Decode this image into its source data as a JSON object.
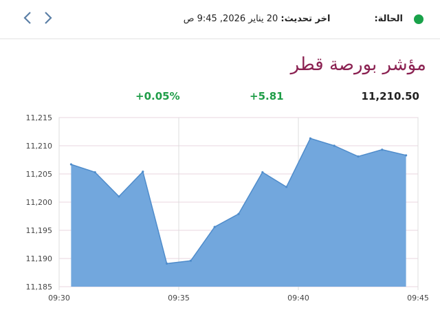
{
  "header": {
    "status_label": "الحالة:",
    "status_color": "#19a24a",
    "update_label": "اخر تحديث:",
    "update_value": "20 يناير 2026, 9:45 ص"
  },
  "nav": {
    "prev_icon": "chevron-left-icon",
    "next_icon": "chevron-right-icon"
  },
  "title": "مؤشر بورصة قطر",
  "stats": {
    "price": "11,210.50",
    "change": "+5.81",
    "change_percent": "+0.05%"
  },
  "chart_data": {
    "type": "area",
    "title": "",
    "xlabel": "",
    "ylabel": "",
    "x_ticks": [
      "09:30",
      "09:35",
      "09:40",
      "09:45"
    ],
    "y_ticks": [
      "11,215",
      "11,210",
      "11,205",
      "11,200",
      "11,195",
      "11,190",
      "11,185"
    ],
    "ylim": [
      11185,
      11215
    ],
    "xlim": [
      "09:30",
      "09:45"
    ],
    "grid": true,
    "fill_color": "#72a7dd",
    "line_color": "#4f8ccb",
    "series": [
      {
        "x": [
          "09:30:30",
          "09:31:30",
          "09:32:30",
          "09:33:30",
          "09:34:30",
          "09:35:30",
          "09:36:30",
          "09:37:30",
          "09:38:30",
          "09:39:30",
          "09:40:30",
          "09:41:30",
          "09:42:30",
          "09:43:30",
          "09:44:30"
        ],
        "values": [
          11206.7,
          11205.3,
          11201.0,
          11205.4,
          11189.1,
          11189.6,
          11195.6,
          11197.9,
          11205.3,
          11202.7,
          11211.3,
          11210.0,
          11208.1,
          11209.3,
          11208.3
        ]
      }
    ]
  }
}
